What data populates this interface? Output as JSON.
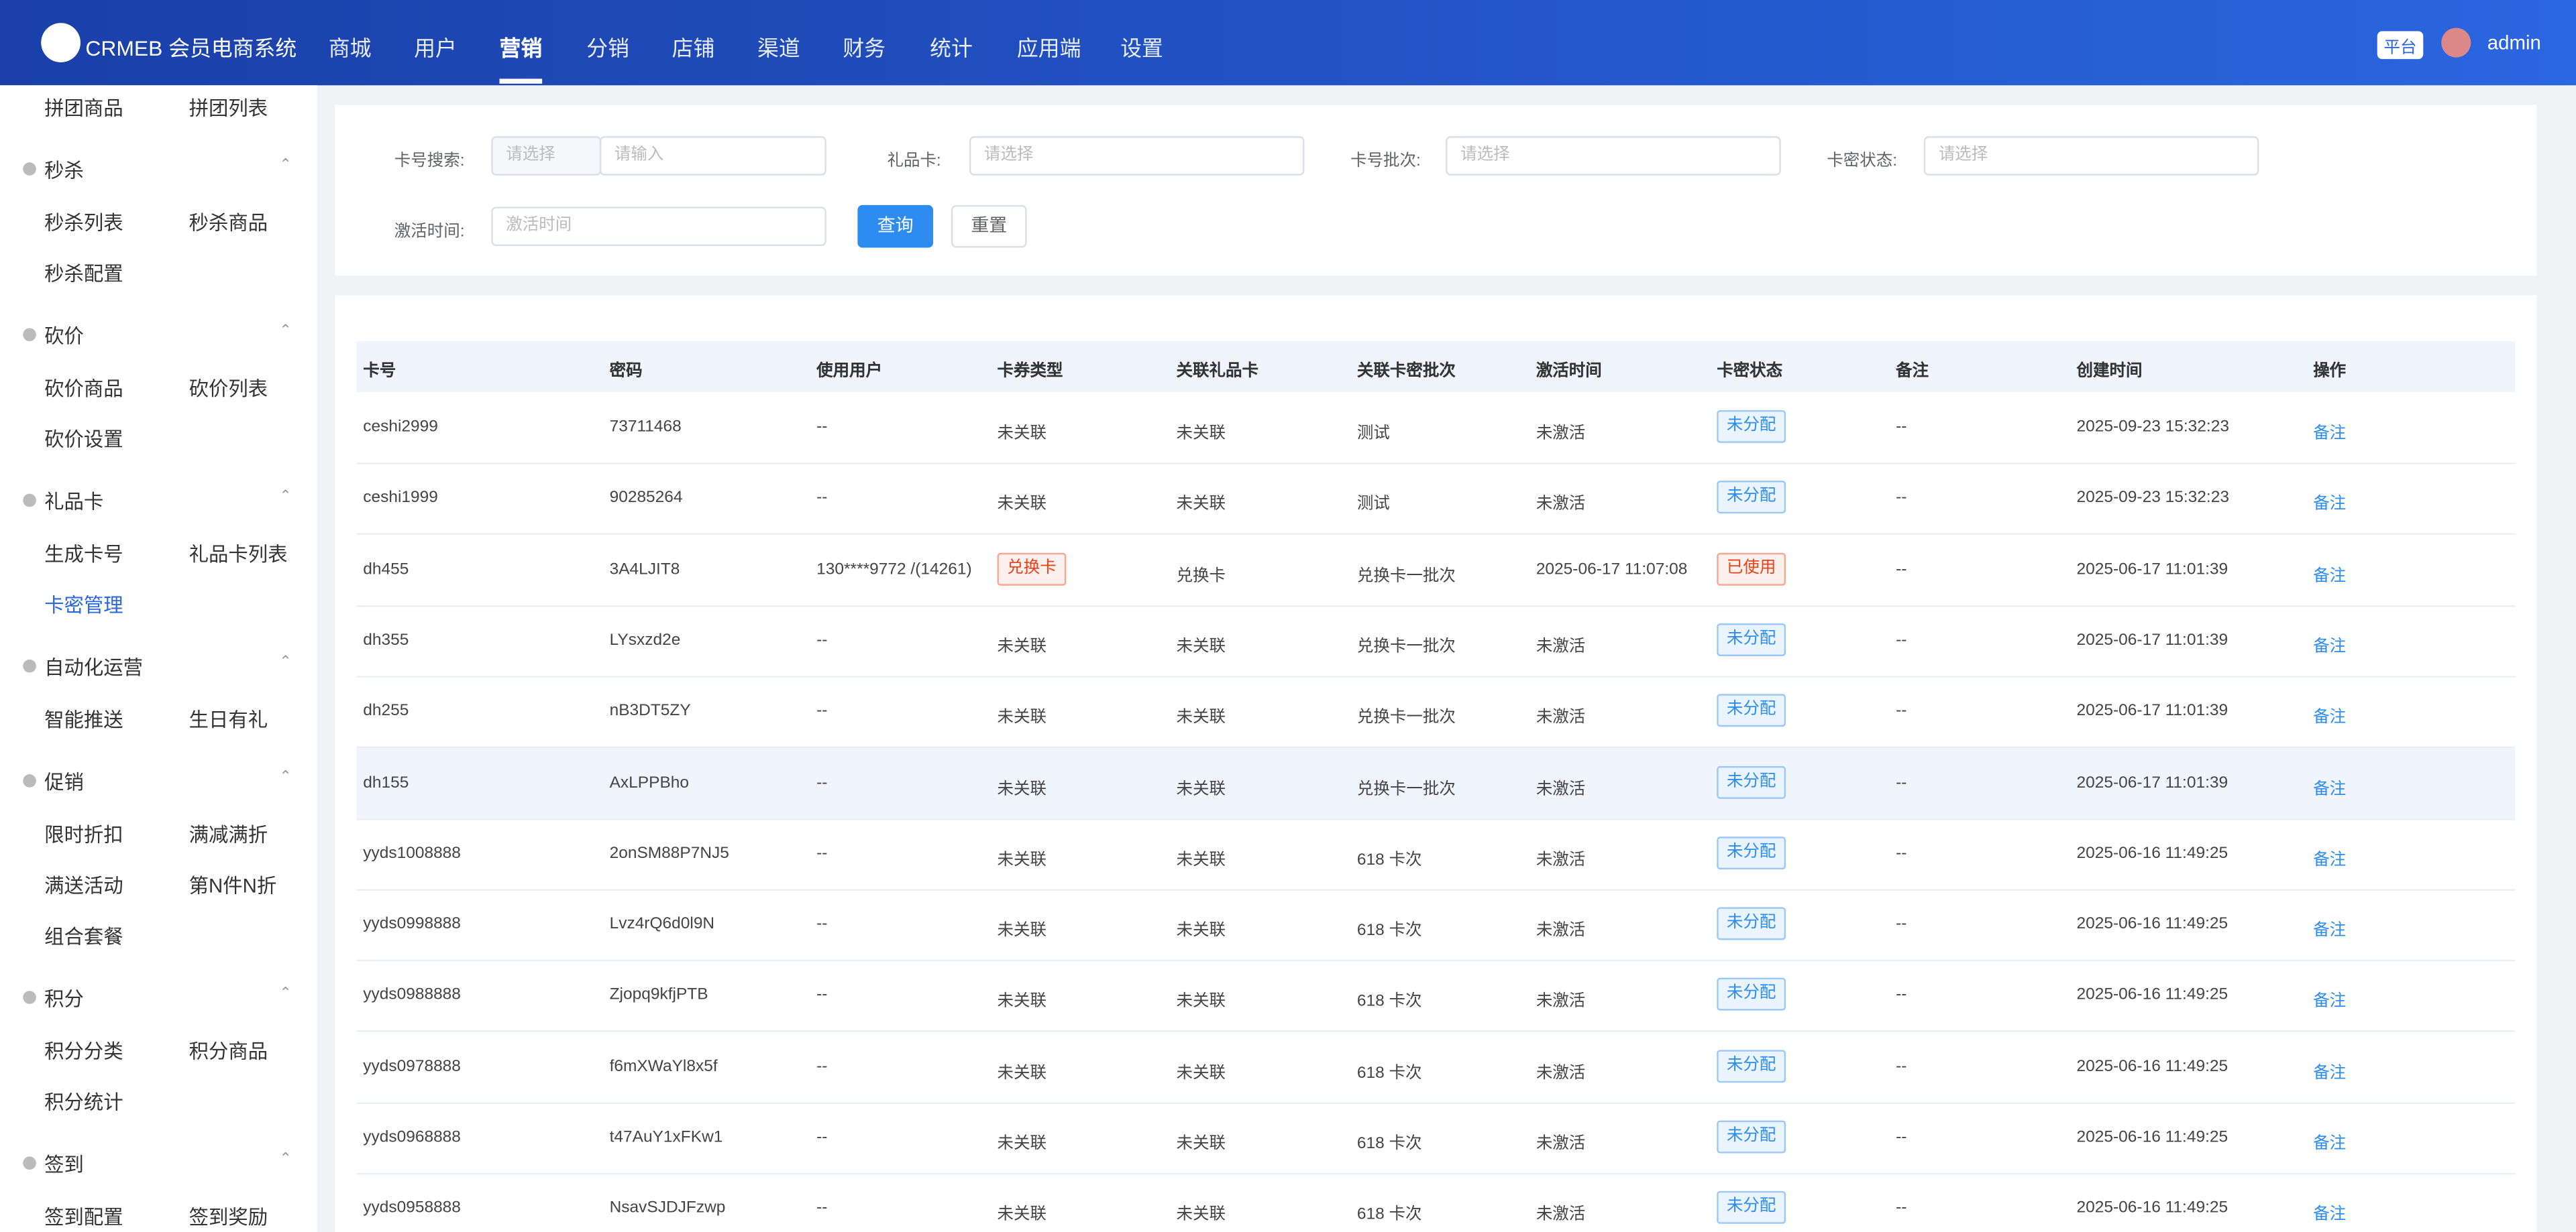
{
  "header": {
    "logo": "CRMEB 会员电商系统",
    "nav": [
      "商城",
      "用户",
      "营销",
      "分销",
      "店铺",
      "渠道",
      "财务",
      "统计",
      "应用端",
      "设置"
    ],
    "active_nav": 2,
    "platform": "平台",
    "user": "admin"
  },
  "sidebar": {
    "top_items": [
      "拼团商品",
      "拼团列表"
    ],
    "groups": [
      {
        "title": "秒杀",
        "items": [
          "秒杀列表",
          "秒杀商品",
          "秒杀配置"
        ]
      },
      {
        "title": "砍价",
        "items": [
          "砍价商品",
          "砍价列表",
          "砍价设置"
        ]
      },
      {
        "title": "礼品卡",
        "items": [
          "生成卡号",
          "礼品卡列表",
          "卡密管理"
        ]
      },
      {
        "title": "自动化运营",
        "items": [
          "智能推送",
          "生日有礼"
        ]
      },
      {
        "title": "促销",
        "items": [
          "限时折扣",
          "满减满折",
          "满送活动",
          "第N件N折",
          "组合套餐"
        ]
      },
      {
        "title": "积分",
        "items": [
          "积分分类",
          "积分商品",
          "积分统计"
        ]
      },
      {
        "title": "签到",
        "items": [
          "签到配置",
          "签到奖励"
        ]
      }
    ],
    "active": "2.2"
  },
  "filters": {
    "card_search": {
      "label": "卡号搜索:",
      "select": "请选择",
      "input": "请输入"
    },
    "gift_card": {
      "label": "礼品卡:",
      "placeholder": "请选择"
    },
    "batch": {
      "label": "卡号批次:",
      "placeholder": "请选择"
    },
    "status": {
      "label": "卡密状态:",
      "placeholder": "请选择"
    },
    "activate_time": {
      "label": "激活时间:",
      "placeholder": "激活时间"
    },
    "query": "查询",
    "reset": "重置"
  },
  "table": {
    "columns": [
      "卡号",
      "密码",
      "使用用户",
      "卡券类型",
      "关联礼品卡",
      "关联卡密批次",
      "激活时间",
      "卡密状态",
      "备注",
      "创建时间",
      "操作"
    ],
    "rows": [
      [
        "ceshi2999",
        "73711468",
        "--",
        "未关联",
        "未关联",
        "测试",
        "未激活",
        "未分配",
        "--",
        "2025-09-23 15:32:23",
        "备注"
      ],
      [
        "ceshi1999",
        "90285264",
        "--",
        "未关联",
        "未关联",
        "测试",
        "未激活",
        "未分配",
        "--",
        "2025-09-23 15:32:23",
        "备注"
      ],
      [
        "dh455",
        "3A4LJIT8",
        "130****9772 /(14261)",
        "兑换卡",
        "兑换卡",
        "兑换卡一批次",
        "2025-06-17 11:07:08",
        "已使用",
        "--",
        "2025-06-17 11:01:39",
        "备注"
      ],
      [
        "dh355",
        "LYsxzd2e",
        "--",
        "未关联",
        "未关联",
        "兑换卡一批次",
        "未激活",
        "未分配",
        "--",
        "2025-06-17 11:01:39",
        "备注"
      ],
      [
        "dh255",
        "nB3DT5ZY",
        "--",
        "未关联",
        "未关联",
        "兑换卡一批次",
        "未激活",
        "未分配",
        "--",
        "2025-06-17 11:01:39",
        "备注"
      ],
      [
        "dh155",
        "AxLPPBho",
        "--",
        "未关联",
        "未关联",
        "兑换卡一批次",
        "未激活",
        "未分配",
        "--",
        "2025-06-17 11:01:39",
        "备注"
      ],
      [
        "yyds1008888",
        "2onSM88P7NJ5",
        "--",
        "未关联",
        "未关联",
        "618 卡次",
        "未激活",
        "未分配",
        "--",
        "2025-06-16 11:49:25",
        "备注"
      ],
      [
        "yyds0998888",
        "Lvz4rQ6d0l9N",
        "--",
        "未关联",
        "未关联",
        "618 卡次",
        "未激活",
        "未分配",
        "--",
        "2025-06-16 11:49:25",
        "备注"
      ],
      [
        "yyds0988888",
        "Zjopq9kfjPTB",
        "--",
        "未关联",
        "未关联",
        "618 卡次",
        "未激活",
        "未分配",
        "--",
        "2025-06-16 11:49:25",
        "备注"
      ],
      [
        "yyds0978888",
        "f6mXWaYl8x5f",
        "--",
        "未关联",
        "未关联",
        "618 卡次",
        "未激活",
        "未分配",
        "--",
        "2025-06-16 11:49:25",
        "备注"
      ],
      [
        "yyds0968888",
        "t47AuY1xFKw1",
        "--",
        "未关联",
        "未关联",
        "618 卡次",
        "未激活",
        "未分配",
        "--",
        "2025-06-16 11:49:25",
        "备注"
      ],
      [
        "yyds0958888",
        "NsavSJDJFzwp",
        "--",
        "未关联",
        "未关联",
        "618 卡次",
        "未激活",
        "未分配",
        "--",
        "2025-06-16 11:49:25",
        "备注"
      ]
    ],
    "highlight_row": 5
  }
}
